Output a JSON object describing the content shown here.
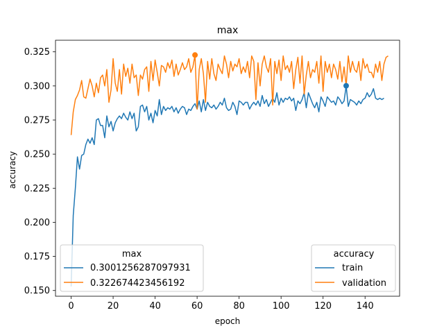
{
  "chart_data": {
    "type": "line",
    "title": "max",
    "xlabel": "epoch",
    "ylabel": "accuracy",
    "xlim": [
      -7.45,
      156.45
    ],
    "ylim": [
      0.1458,
      0.3335
    ],
    "xticks": [
      0,
      20,
      40,
      60,
      80,
      100,
      120,
      140
    ],
    "yticks": [
      0.15,
      0.175,
      0.2,
      0.225,
      0.25,
      0.275,
      0.3,
      0.325
    ],
    "ytick_labels": [
      "0.150",
      "0.175",
      "0.200",
      "0.225",
      "0.250",
      "0.275",
      "0.300",
      "0.325"
    ],
    "grid": false,
    "series": [
      {
        "name": "train",
        "color": "#1f77b4",
        "values": [
          0.153,
          0.205,
          0.225,
          0.248,
          0.239,
          0.249,
          0.25,
          0.257,
          0.261,
          0.258,
          0.262,
          0.257,
          0.275,
          0.276,
          0.271,
          0.271,
          0.262,
          0.278,
          0.27,
          0.274,
          0.267,
          0.273,
          0.276,
          0.278,
          0.276,
          0.28,
          0.277,
          0.275,
          0.281,
          0.276,
          0.28,
          0.267,
          0.27,
          0.285,
          0.286,
          0.281,
          0.285,
          0.275,
          0.28,
          0.273,
          0.282,
          0.278,
          0.29,
          0.279,
          0.285,
          0.282,
          0.284,
          0.283,
          0.285,
          0.281,
          0.284,
          0.28,
          0.283,
          0.285,
          0.284,
          0.279,
          0.283,
          0.282,
          0.285,
          0.287,
          0.283,
          0.289,
          0.281,
          0.29,
          0.282,
          0.288,
          0.285,
          0.284,
          0.286,
          0.283,
          0.285,
          0.288,
          0.286,
          0.291,
          0.284,
          0.282,
          0.283,
          0.288,
          0.285,
          0.279,
          0.289,
          0.288,
          0.286,
          0.288,
          0.288,
          0.283,
          0.286,
          0.288,
          0.286,
          0.289,
          0.285,
          0.293,
          0.287,
          0.29,
          0.285,
          0.288,
          0.291,
          0.288,
          0.295,
          0.286,
          0.291,
          0.288,
          0.291,
          0.29,
          0.292,
          0.289,
          0.291,
          0.282,
          0.289,
          0.287,
          0.29,
          0.295,
          0.284,
          0.295,
          0.291,
          0.287,
          0.284,
          0.288,
          0.281,
          0.292,
          0.289,
          0.285,
          0.292,
          0.29,
          0.288,
          0.289,
          0.286,
          0.292,
          0.29,
          0.287,
          0.289,
          0.3,
          0.285,
          0.29,
          0.289,
          0.288,
          0.286,
          0.289,
          0.287,
          0.29,
          0.291,
          0.295,
          0.292,
          0.294,
          0.298,
          0.291,
          0.29,
          0.291,
          0.29,
          0.291
        ]
      },
      {
        "name": "validation",
        "color": "#ff7f0e",
        "values": [
          0.264,
          0.281,
          0.29,
          0.293,
          0.297,
          0.304,
          0.292,
          0.291,
          0.298,
          0.305,
          0.3,
          0.292,
          0.302,
          0.295,
          0.306,
          0.308,
          0.3,
          0.312,
          0.288,
          0.297,
          0.32,
          0.302,
          0.296,
          0.312,
          0.294,
          0.316,
          0.307,
          0.313,
          0.302,
          0.316,
          0.306,
          0.308,
          0.293,
          0.308,
          0.305,
          0.312,
          0.314,
          0.296,
          0.318,
          0.304,
          0.319,
          0.31,
          0.3,
          0.315,
          0.314,
          0.31,
          0.317,
          0.313,
          0.319,
          0.307,
          0.316,
          0.308,
          0.312,
          0.317,
          0.312,
          0.314,
          0.32,
          0.31,
          0.314,
          0.3227,
          0.283,
          0.312,
          0.32,
          0.309,
          0.288,
          0.318,
          0.305,
          0.32,
          0.309,
          0.304,
          0.316,
          0.312,
          0.309,
          0.322,
          0.316,
          0.306,
          0.318,
          0.311,
          0.316,
          0.314,
          0.32,
          0.309,
          0.314,
          0.31,
          0.318,
          0.306,
          0.322,
          0.318,
          0.29,
          0.317,
          0.3,
          0.316,
          0.322,
          0.314,
          0.31,
          0.32,
          0.286,
          0.318,
          0.309,
          0.319,
          0.304,
          0.322,
          0.312,
          0.315,
          0.31,
          0.318,
          0.298,
          0.312,
          0.321,
          0.302,
          0.322,
          0.294,
          0.308,
          0.318,
          0.306,
          0.312,
          0.31,
          0.318,
          0.302,
          0.322,
          0.296,
          0.318,
          0.31,
          0.316,
          0.306,
          0.316,
          0.312,
          0.305,
          0.318,
          0.303,
          0.314,
          0.3,
          0.322,
          0.31,
          0.318,
          0.312,
          0.31,
          0.318,
          0.304,
          0.32,
          0.313,
          0.316,
          0.31,
          0.31,
          0.306,
          0.316,
          0.31,
          0.318,
          0.304,
          0.316,
          0.321,
          0.322
        ]
      }
    ],
    "max_markers": [
      {
        "series": "train",
        "x": 131,
        "y": 0.3001256287097931
      },
      {
        "series": "validation",
        "x": 59,
        "y": 0.322674423456192
      }
    ],
    "legends": {
      "max": {
        "title": "max",
        "placement": "lower-left",
        "entries": [
          {
            "label": "0.3001256287097931",
            "color": "#1f77b4"
          },
          {
            "label": "0.322674423456192",
            "color": "#ff7f0e"
          }
        ]
      },
      "accuracy": {
        "title": "accuracy",
        "placement": "lower-right",
        "entries": [
          {
            "label": "train",
            "color": "#1f77b4"
          },
          {
            "label": "validation",
            "color": "#ff7f0e"
          }
        ]
      }
    }
  }
}
